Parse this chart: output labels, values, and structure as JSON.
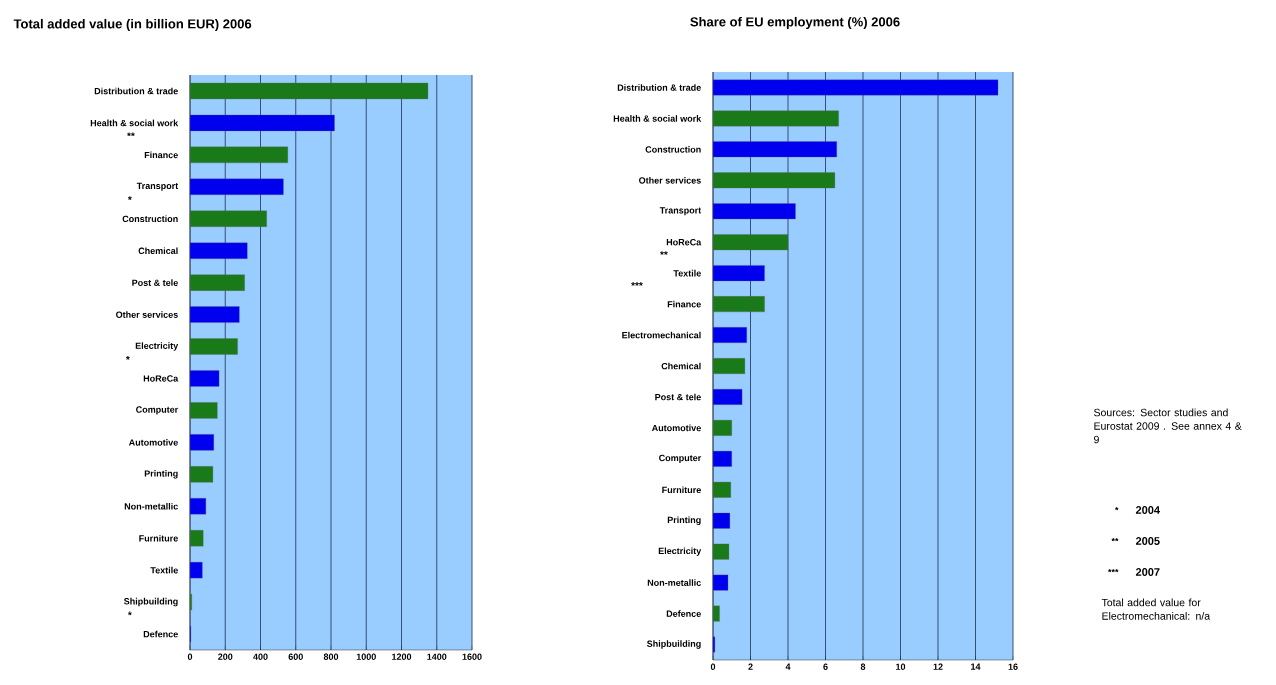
{
  "chart_data": [
    {
      "type": "bar",
      "orientation": "horizontal",
      "title": "Total added value (in billion EUR) 2006",
      "categories": [
        "Distribution & trade",
        "Health & social work",
        "Finance",
        "Transport",
        "Construction",
        "Chemical",
        "Post & tele",
        "Other services",
        "Electricity",
        "HoReCa",
        "Computer",
        "Automotive",
        "Printing",
        "Non-metallic",
        "Furniture",
        "Textile",
        "Shipbuilding",
        "Defence"
      ],
      "values": [
        1350,
        820,
        555,
        530,
        435,
        325,
        310,
        280,
        270,
        165,
        155,
        135,
        130,
        90,
        75,
        70,
        10,
        5
      ],
      "colors": [
        "#1a7a1a",
        "#0000ee",
        "#1a7a1a",
        "#0000ee",
        "#1a7a1a",
        "#0000ee",
        "#1a7a1a",
        "#0000ee",
        "#1a7a1a",
        "#0000ee",
        "#1a7a1a",
        "#0000ee",
        "#1a7a1a",
        "#0000ee",
        "#1a7a1a",
        "#0000ee",
        "#1a7a1a",
        "#0000ee"
      ],
      "xlim": [
        0,
        1600
      ],
      "xticks": [
        0,
        200,
        400,
        600,
        800,
        1000,
        1200,
        1400,
        1600
      ],
      "grid": "x",
      "annotations": [
        "**",
        "*",
        "*",
        "*"
      ]
    },
    {
      "type": "bar",
      "orientation": "horizontal",
      "title": "Share of EU employment (%) 2006",
      "categories": [
        "Distribution & trade",
        "Health & social work",
        "Construction",
        "Other services",
        "Transport",
        "HoReCa",
        "Textile",
        "Finance",
        "Electromechanical",
        "Chemical",
        "Post & tele",
        "Automotive",
        "Computer",
        "Furniture",
        "Printing",
        "Electricity",
        "Non-metallic",
        "Defence",
        "Shipbuilding"
      ],
      "values": [
        15.2,
        6.7,
        6.6,
        6.5,
        4.4,
        4.0,
        2.75,
        2.75,
        1.8,
        1.7,
        1.55,
        1.0,
        1.0,
        0.95,
        0.9,
        0.85,
        0.8,
        0.35,
        0.1
      ],
      "colors": [
        "#0000ee",
        "#1a7a1a",
        "#0000ee",
        "#1a7a1a",
        "#0000ee",
        "#1a7a1a",
        "#0000ee",
        "#1a7a1a",
        "#0000ee",
        "#1a7a1a",
        "#0000ee",
        "#1a7a1a",
        "#0000ee",
        "#1a7a1a",
        "#0000ee",
        "#1a7a1a",
        "#0000ee",
        "#1a7a1a",
        "#0000ee"
      ],
      "xlim": [
        0,
        16
      ],
      "xticks": [
        0,
        2,
        4,
        6,
        8,
        10,
        12,
        14,
        16
      ],
      "grid": "x",
      "annotations": [
        "**",
        "***"
      ]
    },
    {
      "type": "other",
      "annotations": [
        "Sources: Sector studies and Eurostat 2009 . See annex 4 & 9",
        "*",
        "2004",
        "**",
        "2005",
        "***",
        "2007",
        "Total added value for Electromechanical: n/a"
      ]
    }
  ]
}
